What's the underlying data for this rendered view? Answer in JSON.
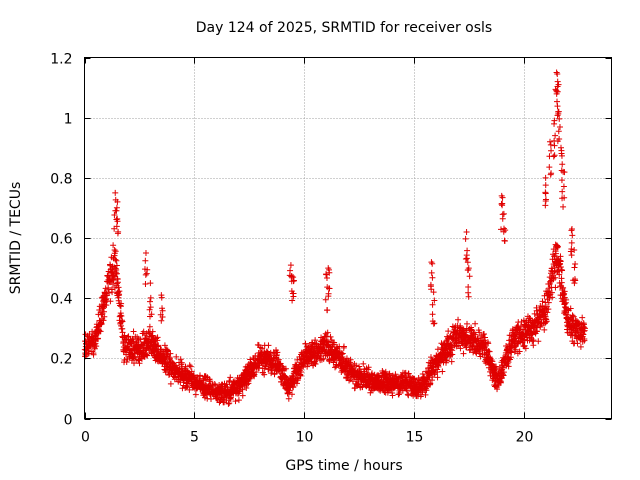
{
  "chart_data": {
    "type": "scatter",
    "title": "Day 124 of 2025, SRMTID for receiver osls",
    "xlabel": "GPS time / hours",
    "ylabel": "SRMTID / TECUs",
    "xlim": [
      0,
      24
    ],
    "ylim": [
      0,
      1.2
    ],
    "xticks": [
      0,
      5,
      10,
      15,
      20
    ],
    "xtick_labels": [
      "0",
      "5",
      "10",
      "15",
      "20"
    ],
    "yticks": [
      0,
      0.2,
      0.4,
      0.6,
      0.8,
      1.0,
      1.2
    ],
    "ytick_labels": [
      "0",
      "0.2",
      "0.4",
      "0.6",
      "0.8",
      "1",
      "1.2"
    ],
    "grid": true,
    "marker": "+",
    "color": "#e00000",
    "series": [
      {
        "name": "SRMTID",
        "x_range": [
          0,
          22.8
        ],
        "sample_step_hours": 0.012,
        "baseline_profile": [
          {
            "x": 0.0,
            "y": 0.24
          },
          {
            "x": 0.5,
            "y": 0.26
          },
          {
            "x": 1.0,
            "y": 0.42
          },
          {
            "x": 1.4,
            "y": 0.52
          },
          {
            "x": 1.8,
            "y": 0.24
          },
          {
            "x": 2.5,
            "y": 0.22
          },
          {
            "x": 3.0,
            "y": 0.26
          },
          {
            "x": 3.5,
            "y": 0.2
          },
          {
            "x": 4.5,
            "y": 0.14
          },
          {
            "x": 5.5,
            "y": 0.1
          },
          {
            "x": 6.5,
            "y": 0.08
          },
          {
            "x": 7.2,
            "y": 0.12
          },
          {
            "x": 8.0,
            "y": 0.2
          },
          {
            "x": 8.8,
            "y": 0.18
          },
          {
            "x": 9.3,
            "y": 0.1
          },
          {
            "x": 10.0,
            "y": 0.2
          },
          {
            "x": 11.0,
            "y": 0.24
          },
          {
            "x": 11.6,
            "y": 0.2
          },
          {
            "x": 12.3,
            "y": 0.14
          },
          {
            "x": 13.5,
            "y": 0.12
          },
          {
            "x": 14.5,
            "y": 0.12
          },
          {
            "x": 15.3,
            "y": 0.1
          },
          {
            "x": 16.0,
            "y": 0.18
          },
          {
            "x": 17.0,
            "y": 0.28
          },
          {
            "x": 18.2,
            "y": 0.24
          },
          {
            "x": 18.8,
            "y": 0.12
          },
          {
            "x": 19.5,
            "y": 0.26
          },
          {
            "x": 20.5,
            "y": 0.3
          },
          {
            "x": 21.0,
            "y": 0.36
          },
          {
            "x": 21.5,
            "y": 0.55
          },
          {
            "x": 22.0,
            "y": 0.32
          },
          {
            "x": 22.8,
            "y": 0.28
          }
        ],
        "spread": 0.07,
        "bursts": [
          {
            "x": 1.4,
            "y": 0.75
          },
          {
            "x": 1.5,
            "y": 0.72
          },
          {
            "x": 3.0,
            "y": 0.45
          },
          {
            "x": 3.5,
            "y": 0.41
          },
          {
            "x": 2.8,
            "y": 0.55
          },
          {
            "x": 9.4,
            "y": 0.51
          },
          {
            "x": 9.5,
            "y": 0.47
          },
          {
            "x": 11.0,
            "y": 0.48
          },
          {
            "x": 11.1,
            "y": 0.5
          },
          {
            "x": 15.8,
            "y": 0.52
          },
          {
            "x": 15.9,
            "y": 0.42
          },
          {
            "x": 17.4,
            "y": 0.62
          },
          {
            "x": 17.5,
            "y": 0.5
          },
          {
            "x": 19.0,
            "y": 0.74
          },
          {
            "x": 19.1,
            "y": 0.68
          },
          {
            "x": 21.0,
            "y": 0.8
          },
          {
            "x": 21.2,
            "y": 0.92
          },
          {
            "x": 21.4,
            "y": 0.99
          },
          {
            "x": 21.5,
            "y": 1.15
          },
          {
            "x": 21.55,
            "y": 1.12
          },
          {
            "x": 21.6,
            "y": 1.02
          },
          {
            "x": 21.7,
            "y": 0.9
          },
          {
            "x": 21.8,
            "y": 0.82
          },
          {
            "x": 22.2,
            "y": 0.63
          },
          {
            "x": 22.3,
            "y": 0.56
          }
        ]
      }
    ]
  }
}
